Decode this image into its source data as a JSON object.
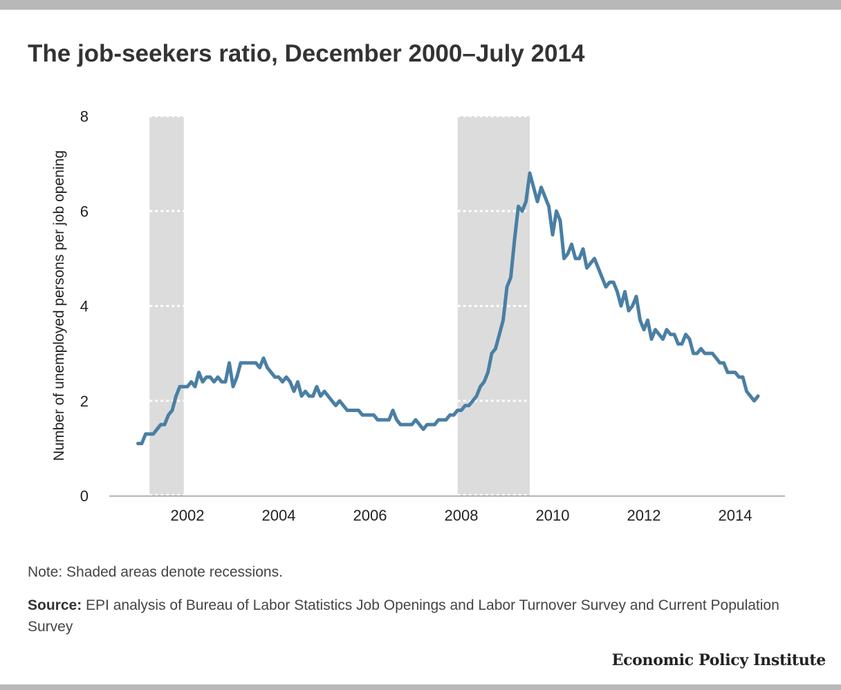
{
  "chart_data": {
    "type": "line",
    "title": "The job-seekers ratio, December 2000–July 2014",
    "xlabel": "",
    "ylabel": "Number of unemployed persons per job opening",
    "ylim": [
      0,
      8
    ],
    "yticks": [
      "0",
      "2",
      "4",
      "6",
      "8"
    ],
    "xticks": [
      "2002",
      "2004",
      "2006",
      "2008",
      "2010",
      "2012",
      "2014"
    ],
    "start": {
      "year": 2000,
      "month": 12
    },
    "frequency": "monthly",
    "recessions": [
      {
        "start": 2001.17,
        "end": 2001.92
      },
      {
        "start": 2007.92,
        "end": 2009.5
      }
    ],
    "series": [
      {
        "name": "Job-seekers ratio",
        "color": "#4a7fa3",
        "values": [
          1.1,
          1.1,
          1.3,
          1.3,
          1.3,
          1.4,
          1.5,
          1.5,
          1.7,
          1.8,
          2.1,
          2.3,
          2.3,
          2.3,
          2.4,
          2.3,
          2.6,
          2.4,
          2.5,
          2.5,
          2.4,
          2.5,
          2.4,
          2.4,
          2.8,
          2.3,
          2.5,
          2.8,
          2.8,
          2.8,
          2.8,
          2.8,
          2.7,
          2.9,
          2.7,
          2.6,
          2.5,
          2.5,
          2.4,
          2.5,
          2.4,
          2.2,
          2.4,
          2.1,
          2.2,
          2.1,
          2.1,
          2.3,
          2.1,
          2.2,
          2.1,
          2.0,
          1.9,
          2.0,
          1.9,
          1.8,
          1.8,
          1.8,
          1.8,
          1.7,
          1.7,
          1.7,
          1.7,
          1.6,
          1.6,
          1.6,
          1.6,
          1.8,
          1.6,
          1.5,
          1.5,
          1.5,
          1.5,
          1.6,
          1.5,
          1.4,
          1.5,
          1.5,
          1.5,
          1.6,
          1.6,
          1.6,
          1.7,
          1.7,
          1.8,
          1.8,
          1.9,
          1.9,
          2.0,
          2.1,
          2.3,
          2.4,
          2.6,
          3.0,
          3.1,
          3.4,
          3.7,
          4.4,
          4.6,
          5.4,
          6.1,
          6.0,
          6.2,
          6.8,
          6.5,
          6.2,
          6.5,
          6.3,
          6.1,
          5.5,
          6.0,
          5.8,
          5.0,
          5.1,
          5.3,
          5.0,
          5.0,
          5.2,
          4.8,
          4.9,
          5.0,
          4.8,
          4.6,
          4.4,
          4.5,
          4.5,
          4.3,
          4.0,
          4.3,
          3.9,
          4.0,
          4.2,
          3.7,
          3.5,
          3.7,
          3.3,
          3.5,
          3.4,
          3.3,
          3.5,
          3.4,
          3.4,
          3.2,
          3.2,
          3.4,
          3.3,
          3.0,
          3.0,
          3.1,
          3.0,
          3.0,
          3.0,
          2.9,
          2.8,
          2.8,
          2.6,
          2.6,
          2.6,
          2.5,
          2.5,
          2.2,
          2.1,
          2.0,
          2.1
        ]
      }
    ]
  },
  "note": "Note: Shaded areas denote recessions.",
  "source_label": "Source:",
  "source_text": " EPI analysis of Bureau of Labor Statistics Job Openings and Labor Turnover Survey and Current Population Survey",
  "logo": "Economic Policy Institute"
}
